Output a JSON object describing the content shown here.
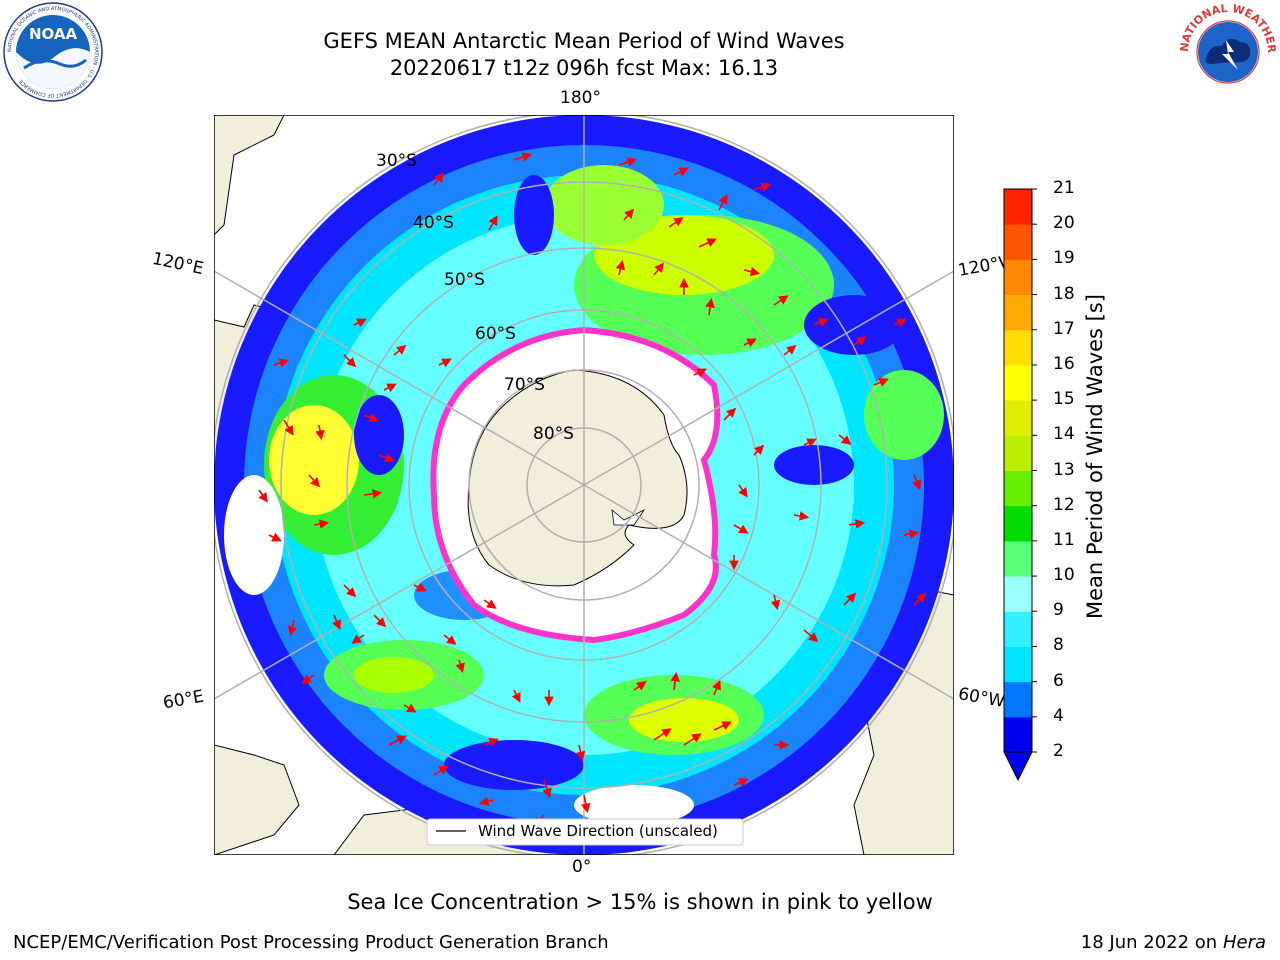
{
  "title": {
    "line1": "GEFS MEAN Antarctic Mean Period of Wind Waves",
    "line2": "20220617 t12z 096h fcst   Max: 16.13"
  },
  "logos": {
    "noaa_text": "NOAA",
    "noaa_ring": "NATIONAL OCEANIC AND ATMOSPHERIC ADMINISTRATION · U.S. DEPARTMENT OF COMMERCE",
    "nws_ring": "NATIONAL WEATHER SERVICE"
  },
  "map": {
    "projection": "south-polar-stereographic",
    "lon_labels": {
      "top": "180°",
      "bottom": "0°",
      "left_upper": "120°E",
      "left_lower": "60°E",
      "right_upper": "120°W",
      "right_lower": "60°W"
    },
    "lat_labels": [
      "30°S",
      "40°S",
      "50°S",
      "60°S",
      "70°S",
      "80°S"
    ],
    "colors": {
      "land": "#efefdc",
      "coast": "#000000",
      "grid": "#b0b0b0",
      "arrow": "#ff0000",
      "ice_edge": "#ff33cc",
      "ice_fill": "#ffffff"
    },
    "legend": {
      "label": "Wind Wave Direction (unscaled)"
    }
  },
  "colorbar": {
    "title": "Mean Period of Wind Waves [s]",
    "ticks": [
      "2",
      "4",
      "6",
      "8",
      "9",
      "10",
      "11",
      "12",
      "13",
      "14",
      "15",
      "16",
      "17",
      "18",
      "19",
      "20",
      "21"
    ],
    "colors": [
      "#0000ee",
      "#0077ff",
      "#00e5ff",
      "#33f0ff",
      "#99ffff",
      "#55ff77",
      "#00dd00",
      "#66ee00",
      "#bbee00",
      "#ddee00",
      "#ffff00",
      "#ffdd00",
      "#ffaa00",
      "#ff8800",
      "#ff5500",
      "#ff2200",
      "#ff0000"
    ],
    "extend_color": "#0000ee"
  },
  "notes": {
    "sea_ice": "Sea Ice Concentration > 15% is shown in pink to yellow",
    "producer": "NCEP/EMC/Verification Post Processing Product Generation Branch",
    "date": "18 Jun 2022 on",
    "machine": "Hera"
  }
}
